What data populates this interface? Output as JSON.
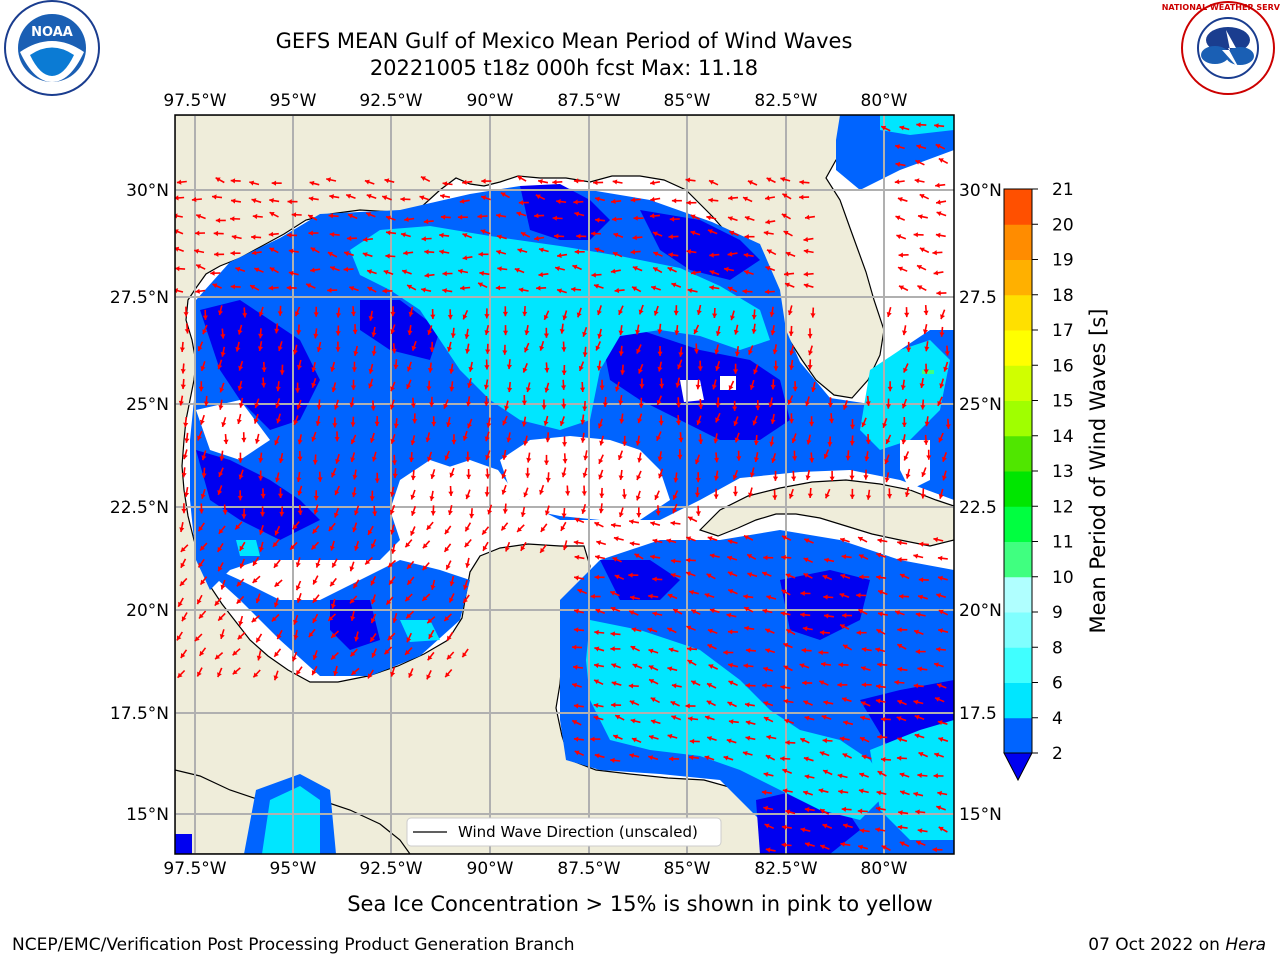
{
  "header": {
    "title_line1": "GEFS MEAN Gulf of Mexico Mean Period of Wind Waves",
    "title_line2": "20221005 t18z 000h fcst   Max: 11.18",
    "logo_left": "noara-logo",
    "logo_right": "national-weather-service-logo",
    "logo_left_text": "NOAA",
    "logo_right_text": "NATIONAL WEATHER SERVICE"
  },
  "map": {
    "lon_labels": [
      "97.5°W",
      "95°W",
      "92.5°W",
      "90°W",
      "87.5°W",
      "85°W",
      "82.5°W",
      "80°W"
    ],
    "lat_labels_left": [
      "30°N",
      "27.5°N",
      "25°N",
      "22.5°N",
      "20°N",
      "17.5°N",
      "15°N"
    ],
    "lat_labels_right": [
      "30°N",
      "27.5",
      "25°N",
      "22.5",
      "20°N",
      "17.5",
      "15°N"
    ],
    "legend_label": "Wind Wave Direction (unscaled)",
    "colors": {
      "land": "#efedda",
      "grid": "#b0b0b0",
      "arrow": "#ff0000"
    }
  },
  "colorbar": {
    "label": "Mean Period of Wind Waves [s]",
    "ticks": [
      "2",
      "4",
      "6",
      "8",
      "9",
      "10",
      "11",
      "12",
      "13",
      "14",
      "15",
      "16",
      "17",
      "18",
      "19",
      "20",
      "21"
    ],
    "colors": [
      "#0064ff",
      "#00e6ff",
      "#40ffff",
      "#80ffff",
      "#b0ffff",
      "#40ff80",
      "#00ff40",
      "#00e600",
      "#50e600",
      "#a0ff00",
      "#d0ff00",
      "#ffff00",
      "#ffe000",
      "#ffb000",
      "#ff8c00",
      "#ff5000",
      "#ff2800",
      "#ff0000"
    ],
    "extend_color": "#0000f0"
  },
  "footer": {
    "ice_note": "Sea Ice Concentration > 15% is shown in pink to yellow",
    "credit": "NCEP/EMC/Verification Post Processing Product Generation Branch",
    "date": "07 Oct 2022 on",
    "machine": "Hera"
  }
}
